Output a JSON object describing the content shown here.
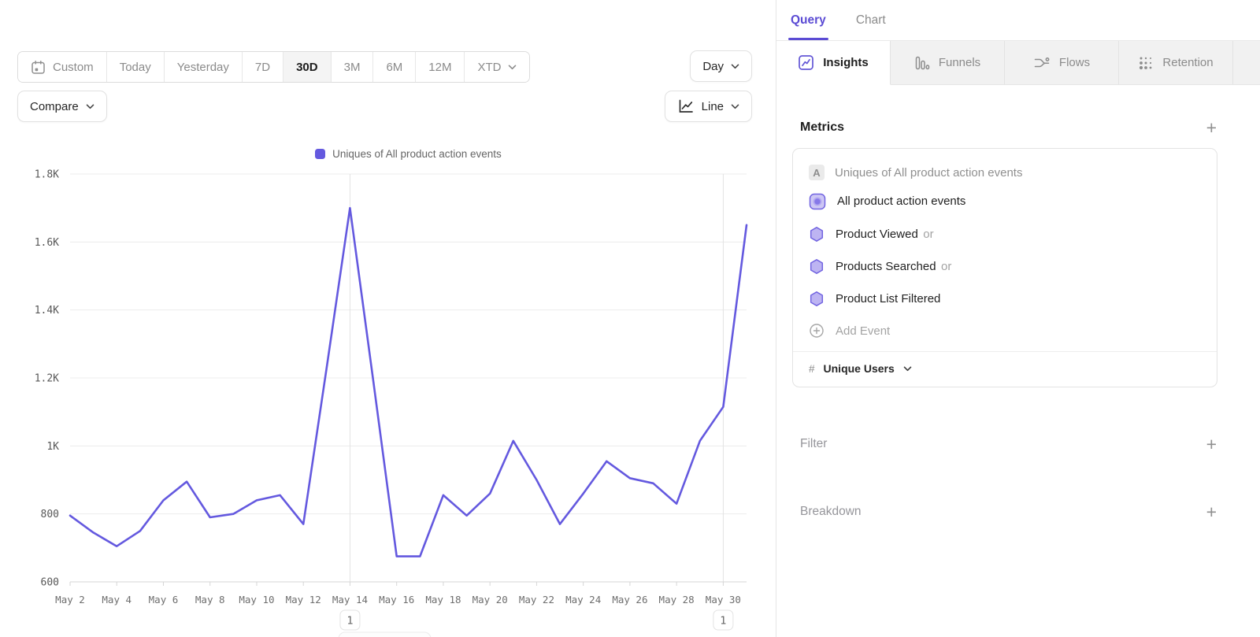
{
  "toolbar": {
    "date_ranges": [
      {
        "label": "Custom",
        "icon": "calendar-icon"
      },
      {
        "label": "Today"
      },
      {
        "label": "Yesterday"
      },
      {
        "label": "7D"
      },
      {
        "label": "30D"
      },
      {
        "label": "3M"
      },
      {
        "label": "6M"
      },
      {
        "label": "12M"
      },
      {
        "label": "XTD",
        "icon": "chevron-down-icon"
      }
    ],
    "active_range": "30D",
    "granularity": "Day",
    "chart_type_label": "Line",
    "compare_label": "Compare"
  },
  "legend": {
    "label": "Uniques of All product action events",
    "color": "#6459df"
  },
  "chart_data": {
    "type": "line",
    "title": "Uniques of All product action events",
    "x": [
      "May 2",
      "May 3",
      "May 4",
      "May 5",
      "May 6",
      "May 7",
      "May 8",
      "May 9",
      "May 10",
      "May 11",
      "May 12",
      "May 13",
      "May 14",
      "May 15",
      "May 16",
      "May 17",
      "May 18",
      "May 19",
      "May 20",
      "May 21",
      "May 22",
      "May 23",
      "May 24",
      "May 25",
      "May 26",
      "May 27",
      "May 28",
      "May 29",
      "May 30",
      "May 31"
    ],
    "values": [
      795,
      745,
      705,
      750,
      840,
      895,
      790,
      800,
      840,
      855,
      770,
      1230,
      1700,
      1190,
      675,
      675,
      855,
      795,
      860,
      1015,
      900,
      770,
      860,
      955,
      905,
      890,
      830,
      1015,
      1115,
      1650
    ],
    "ylim": [
      600,
      1800
    ],
    "y_tick_step": 200,
    "y_ticks": [
      "1.8K",
      "1.6K",
      "1.4K",
      "1.2K",
      "1K",
      "800",
      "600"
    ],
    "x_tick_every": 2,
    "grid": true,
    "legend_position": "top-center",
    "line_color": "#6459df",
    "annotations": [
      {
        "x": "May 14",
        "label": "1"
      },
      {
        "x": "May 30",
        "label": "1"
      }
    ]
  },
  "panel": {
    "tabs": [
      {
        "label": "Query",
        "active": true
      },
      {
        "label": "Chart",
        "active": false
      }
    ],
    "report_tabs": [
      {
        "label": "Insights",
        "icon": "insights-icon",
        "active": true
      },
      {
        "label": "Funnels",
        "icon": "funnels-icon",
        "active": false
      },
      {
        "label": "Flows",
        "icon": "flows-icon",
        "active": false
      },
      {
        "label": "Retention",
        "icon": "retention-icon",
        "active": false
      }
    ],
    "metrics": {
      "title": "Metrics",
      "add_label": "+",
      "card": {
        "letter": "A",
        "summary": "Uniques of All product action events",
        "events": [
          {
            "label": "All product action events",
            "suffix": "",
            "icon": "all-events-icon"
          },
          {
            "label": "Product Viewed",
            "suffix": "or",
            "icon": "hexagon-icon"
          },
          {
            "label": "Products Searched",
            "suffix": "or",
            "icon": "hexagon-icon"
          },
          {
            "label": "Product List Filtered",
            "suffix": "",
            "icon": "hexagon-icon"
          }
        ],
        "add_event_label": "Add Event",
        "aggregation": {
          "symbol": "#",
          "label": "Unique Users"
        }
      }
    },
    "filter": {
      "title": "Filter",
      "add_label": "+"
    },
    "breakdown": {
      "title": "Breakdown",
      "add_label": "+"
    }
  },
  "colors": {
    "accent_purple": "#5b4bd4",
    "line_purple": "#6459df",
    "hexagon_fill": "#bdb4f2",
    "hexagon_stroke": "#7264e1",
    "grid_line": "#ececec",
    "border": "#e3e3e3"
  }
}
